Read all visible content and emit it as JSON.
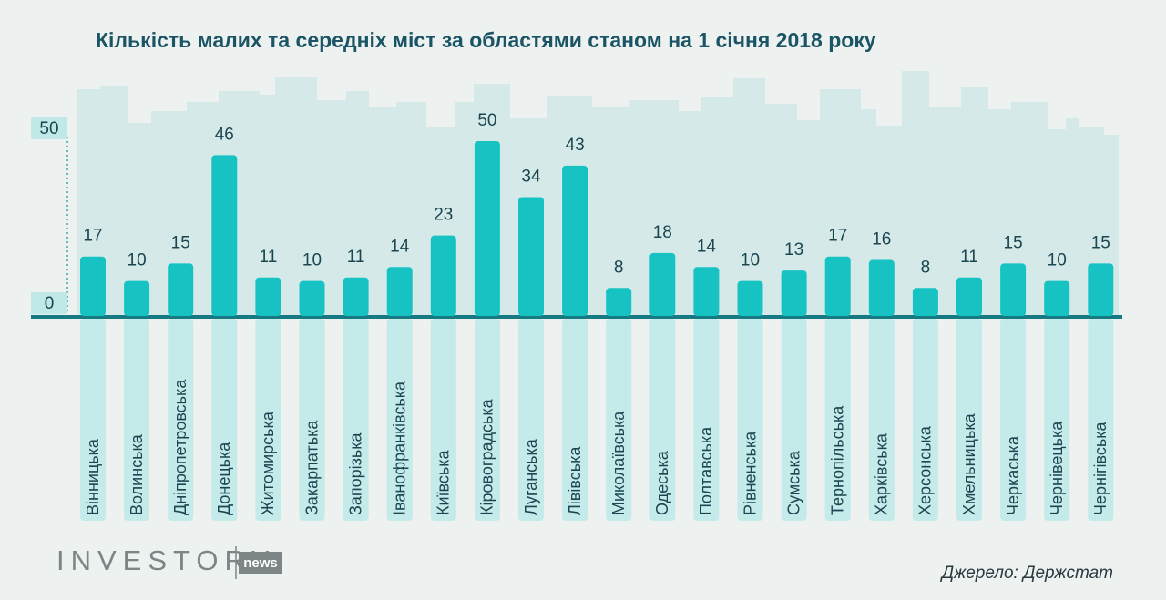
{
  "chart_data": {
    "type": "bar",
    "title": "Кількість малих та середніх міст за областями станом на 1 січня 2018 року",
    "categories": [
      "Вінницька",
      "Волинська",
      "Дніпропетровська",
      "Донецька",
      "Житомирська",
      "Закарпатька",
      "Запорізька",
      "Іванофранківська",
      "Київська",
      "Кіровоградська",
      "Луганська",
      "Лівівська",
      "Миколаївська",
      "Одеська",
      "Полтавська",
      "Рівненська",
      "Сумська",
      "Тернопільська",
      "Харківська",
      "Херсонська",
      "Хмельницька",
      "Черкаська",
      "Чернівецька",
      "Чернігівська"
    ],
    "values": [
      17,
      10,
      15,
      46,
      11,
      10,
      11,
      14,
      23,
      50,
      34,
      43,
      8,
      18,
      14,
      10,
      13,
      17,
      16,
      8,
      11,
      15,
      10,
      15
    ],
    "color": "#16c2c2",
    "ylim": [
      0,
      50
    ],
    "yticks": [
      0,
      50
    ],
    "source": "Джерело: Держстат"
  },
  "branding": {
    "logo": "INVESTORY",
    "logo_tag": "news"
  }
}
